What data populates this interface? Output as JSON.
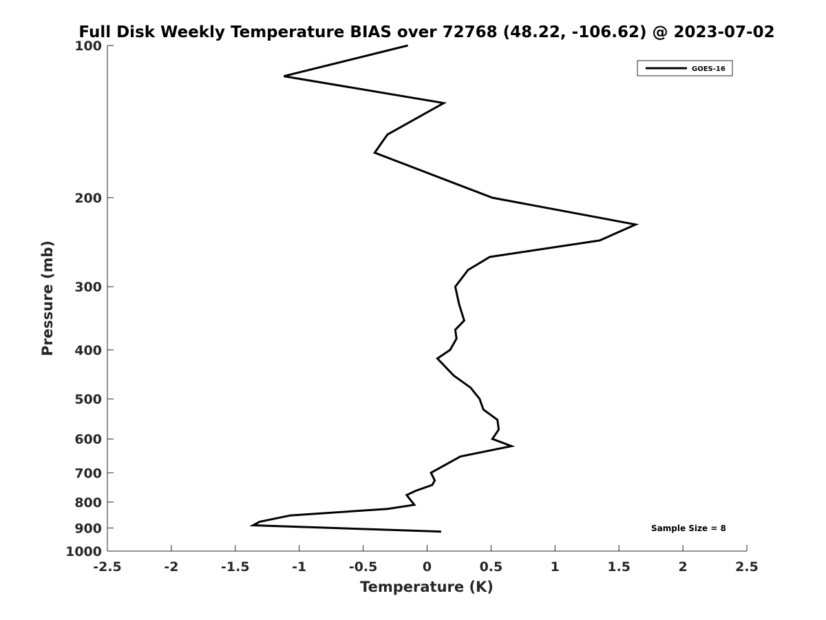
{
  "chart_data": {
    "type": "line",
    "title": "Full Disk Weekly Temperature BIAS over 72768 (48.22, -106.62) @ 2023-07-02",
    "xlabel": "Temperature (K)",
    "ylabel": "Pressure (mb)",
    "xlim": [
      -2.5,
      2.5
    ],
    "ylim": [
      100,
      1000
    ],
    "y_scale": "log",
    "y_reversed": true,
    "xticks": [
      "-2.5",
      "-2",
      "-1.5",
      "-1",
      "-0.5",
      "0",
      "0.5",
      "1",
      "1.5",
      "2",
      "2.5"
    ],
    "yticks": [
      "100",
      "200",
      "300",
      "400",
      "500",
      "600",
      "700",
      "800",
      "900",
      "1000"
    ],
    "grid": false,
    "legend_position": "top-right",
    "series": [
      {
        "name": "GOES-16",
        "color": "#000000",
        "x": [
          -0.15,
          -1.12,
          0.13,
          -0.31,
          -0.41,
          0.51,
          1.63,
          1.35,
          0.49,
          0.32,
          0.22,
          0.25,
          0.29,
          0.22,
          0.23,
          0.18,
          0.08,
          0.21,
          0.34,
          0.41,
          0.44,
          0.55,
          0.56,
          0.51,
          0.66,
          0.26,
          0.03,
          0.06,
          0.04,
          -0.09,
          -0.16,
          -0.1,
          -0.31,
          -1.07,
          -1.31,
          -1.36,
          0.11
        ],
        "y": [
          100,
          115,
          130,
          150,
          163,
          200,
          226,
          243,
          262,
          278,
          300,
          325,
          350,
          365,
          380,
          400,
          416,
          450,
          475,
          500,
          525,
          550,
          575,
          600,
          620,
          650,
          700,
          725,
          740,
          760,
          775,
          810,
          825,
          850,
          875,
          889,
          915
        ]
      }
    ],
    "annotations": [
      "Sample Size = 8"
    ]
  }
}
